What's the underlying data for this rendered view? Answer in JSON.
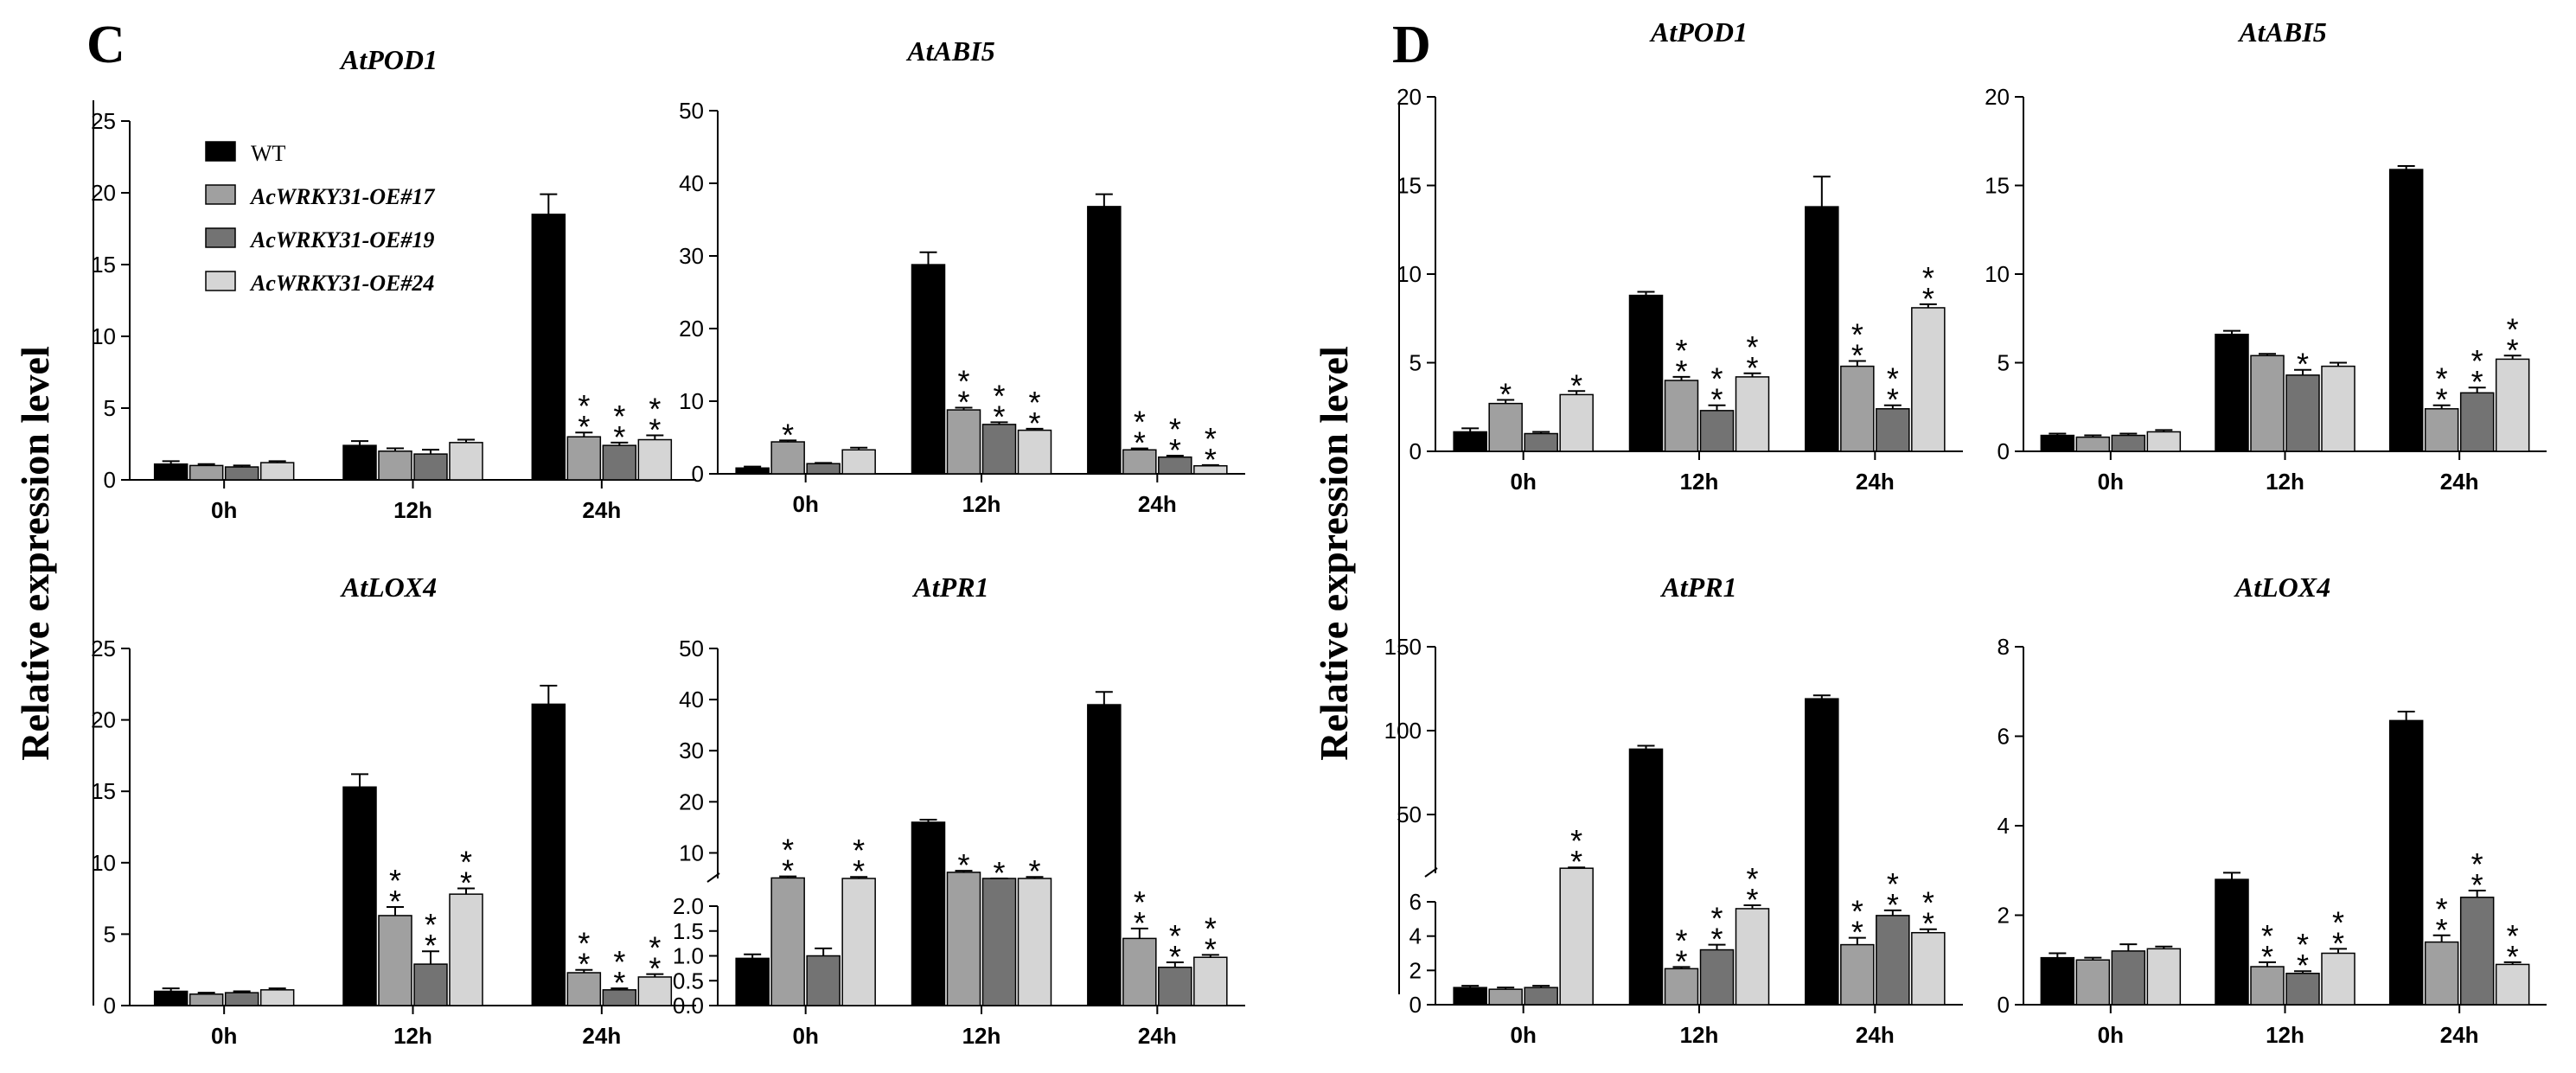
{
  "panels": [
    {
      "letter": "C",
      "ylabel": "Relative expression level"
    },
    {
      "letter": "D",
      "ylabel": "Relative expression level"
    }
  ],
  "legend": {
    "entries": [
      "WT",
      "AcWRKY31-OE#17",
      "AcWRKY31-OE#19",
      "AcWRKY31-OE#24"
    ],
    "colors": [
      "#000000",
      "#a0a0a0",
      "#737373",
      "#d5d5d5"
    ]
  },
  "chart_data": [
    {
      "type": "bar",
      "panel": "C",
      "title": "AtPOD1",
      "categories": [
        "0h",
        "12h",
        "24h"
      ],
      "ylim": [
        0,
        25
      ],
      "yticks": [
        0,
        5,
        10,
        15,
        20,
        25
      ],
      "series": [
        {
          "name": "WT",
          "values": [
            1.1,
            2.4,
            18.5
          ],
          "errors": [
            0.2,
            0.3,
            1.4
          ]
        },
        {
          "name": "AcWRKY31-OE#17",
          "values": [
            1.0,
            2.0,
            3.0
          ],
          "errors": [
            0.1,
            0.2,
            0.3
          ]
        },
        {
          "name": "AcWRKY31-OE#19",
          "values": [
            0.9,
            1.8,
            2.4
          ],
          "errors": [
            0.1,
            0.3,
            0.2
          ]
        },
        {
          "name": "AcWRKY31-OE#24",
          "values": [
            1.2,
            2.6,
            2.8
          ],
          "errors": [
            0.1,
            0.2,
            0.3
          ]
        }
      ],
      "significance": [
        [
          "",
          "",
          ""
        ],
        [
          "",
          "",
          "**"
        ],
        [
          "",
          "",
          "**"
        ],
        [
          "",
          "",
          "**"
        ]
      ]
    },
    {
      "type": "bar",
      "panel": "C",
      "title": "AtABI5",
      "categories": [
        "0h",
        "12h",
        "24h"
      ],
      "ylim": [
        0,
        50
      ],
      "yticks": [
        0,
        10,
        20,
        30,
        40,
        50
      ],
      "series": [
        {
          "name": "WT",
          "values": [
            0.8,
            28.8,
            36.8
          ],
          "errors": [
            0.2,
            1.7,
            1.7
          ]
        },
        {
          "name": "AcWRKY31-OE#17",
          "values": [
            4.4,
            8.8,
            3.3
          ],
          "errors": [
            0.2,
            0.3,
            0.2
          ]
        },
        {
          "name": "AcWRKY31-OE#19",
          "values": [
            1.4,
            6.8,
            2.3
          ],
          "errors": [
            0.1,
            0.3,
            0.2
          ]
        },
        {
          "name": "AcWRKY31-OE#24",
          "values": [
            3.3,
            6.0,
            1.1
          ],
          "errors": [
            0.3,
            0.2,
            0.1
          ]
        }
      ],
      "significance": [
        [
          "",
          "",
          ""
        ],
        [
          "*",
          "**",
          "**"
        ],
        [
          "",
          "**",
          "**"
        ],
        [
          "",
          "**",
          "**"
        ]
      ]
    },
    {
      "type": "bar",
      "panel": "C",
      "title": "AtLOX4",
      "categories": [
        "0h",
        "12h",
        "24h"
      ],
      "ylim": [
        0,
        25
      ],
      "yticks": [
        0,
        5,
        10,
        15,
        20,
        25
      ],
      "series": [
        {
          "name": "WT",
          "values": [
            1.0,
            15.3,
            21.1
          ],
          "errors": [
            0.2,
            0.9,
            1.3
          ]
        },
        {
          "name": "AcWRKY31-OE#17",
          "values": [
            0.8,
            6.3,
            2.3
          ],
          "errors": [
            0.1,
            0.6,
            0.2
          ]
        },
        {
          "name": "AcWRKY31-OE#19",
          "values": [
            0.9,
            2.9,
            1.1
          ],
          "errors": [
            0.1,
            0.9,
            0.1
          ]
        },
        {
          "name": "AcWRKY31-OE#24",
          "values": [
            1.1,
            7.8,
            2.0
          ],
          "errors": [
            0.1,
            0.4,
            0.2
          ]
        }
      ],
      "significance": [
        [
          "",
          "",
          ""
        ],
        [
          "",
          "**",
          "**"
        ],
        [
          "",
          "**",
          "**"
        ],
        [
          "",
          "**",
          "**"
        ]
      ]
    },
    {
      "type": "bar",
      "panel": "C",
      "title": "AtPR1",
      "categories": [
        "0h",
        "12h",
        "24h"
      ],
      "broken_axis": true,
      "lower_ylim": [
        0,
        2
      ],
      "lower_yticks": [
        0,
        0.5,
        1.0,
        1.5,
        2.0
      ],
      "upper_ylim": [
        5,
        50
      ],
      "upper_yticks": [
        10,
        20,
        30,
        40,
        50
      ],
      "series": [
        {
          "name": "WT",
          "values": [
            0.95,
            16.0,
            39.0
          ],
          "errors": [
            0.08,
            0.5,
            2.5
          ]
        },
        {
          "name": "AcWRKY31-OE#17",
          "values": [
            5.1,
            6.2,
            1.35
          ],
          "errors": [
            0.3,
            0.3,
            0.2
          ]
        },
        {
          "name": "AcWRKY31-OE#19",
          "values": [
            1.0,
            3.5,
            0.77
          ],
          "errors": [
            0.15,
            0.2,
            0.1
          ]
        },
        {
          "name": "AcWRKY31-OE#24",
          "values": [
            5.0,
            5.0,
            0.97
          ],
          "errors": [
            0.3,
            0.3,
            0.05
          ]
        }
      ],
      "significance": [
        [
          "",
          "",
          ""
        ],
        [
          "**",
          "*",
          "**"
        ],
        [
          "",
          "*",
          "**"
        ],
        [
          "**",
          "*",
          "**"
        ]
      ]
    },
    {
      "type": "bar",
      "panel": "D",
      "title": "AtPOD1",
      "categories": [
        "0h",
        "12h",
        "24h"
      ],
      "ylim": [
        0,
        20
      ],
      "yticks": [
        0,
        5,
        10,
        15,
        20
      ],
      "series": [
        {
          "name": "WT",
          "values": [
            1.1,
            8.8,
            13.8
          ],
          "errors": [
            0.2,
            0.2,
            1.7
          ]
        },
        {
          "name": "AcWRKY31-OE#17",
          "values": [
            2.7,
            4.0,
            4.8
          ],
          "errors": [
            0.2,
            0.2,
            0.3
          ]
        },
        {
          "name": "AcWRKY31-OE#19",
          "values": [
            1.0,
            2.3,
            2.4
          ],
          "errors": [
            0.1,
            0.3,
            0.2
          ]
        },
        {
          "name": "AcWRKY31-OE#24",
          "values": [
            3.2,
            4.2,
            8.1
          ],
          "errors": [
            0.2,
            0.2,
            0.2
          ]
        }
      ],
      "significance": [
        [
          "",
          "",
          ""
        ],
        [
          "*",
          "**",
          "**"
        ],
        [
          "",
          "**",
          "**"
        ],
        [
          "*",
          "**",
          "**"
        ]
      ]
    },
    {
      "type": "bar",
      "panel": "D",
      "title": "AtABI5",
      "categories": [
        "0h",
        "12h",
        "24h"
      ],
      "ylim": [
        0,
        20
      ],
      "yticks": [
        0,
        5,
        10,
        15,
        20
      ],
      "series": [
        {
          "name": "WT",
          "values": [
            0.9,
            6.6,
            15.9
          ],
          "errors": [
            0.1,
            0.2,
            0.2
          ]
        },
        {
          "name": "AcWRKY31-OE#17",
          "values": [
            0.8,
            5.4,
            2.4
          ],
          "errors": [
            0.1,
            0.1,
            0.2
          ]
        },
        {
          "name": "AcWRKY31-OE#19",
          "values": [
            0.9,
            4.3,
            3.3
          ],
          "errors": [
            0.1,
            0.3,
            0.3
          ]
        },
        {
          "name": "AcWRKY31-OE#24",
          "values": [
            1.1,
            4.8,
            5.2
          ],
          "errors": [
            0.1,
            0.2,
            0.2
          ]
        }
      ],
      "significance": [
        [
          "",
          "",
          ""
        ],
        [
          "",
          "",
          "**"
        ],
        [
          "",
          "*",
          "**"
        ],
        [
          "",
          "",
          "**"
        ]
      ]
    },
    {
      "type": "bar",
      "panel": "D",
      "title": "AtPR1",
      "categories": [
        "0h",
        "12h",
        "24h"
      ],
      "broken_axis": true,
      "lower_ylim": [
        0,
        6
      ],
      "lower_yticks": [
        0,
        2,
        4,
        6
      ],
      "upper_ylim": [
        15,
        150
      ],
      "upper_yticks": [
        50,
        100,
        150
      ],
      "series": [
        {
          "name": "WT",
          "values": [
            1.0,
            89,
            119
          ],
          "errors": [
            0.1,
            2,
            2
          ]
        },
        {
          "name": "AcWRKY31-OE#17",
          "values": [
            0.9,
            2.1,
            3.5
          ],
          "errors": [
            0.1,
            0.1,
            0.4
          ]
        },
        {
          "name": "AcWRKY31-OE#19",
          "values": [
            1.0,
            3.2,
            5.2
          ],
          "errors": [
            0.1,
            0.3,
            0.3
          ]
        },
        {
          "name": "AcWRKY31-OE#24",
          "values": [
            18,
            5.6,
            4.2
          ],
          "errors": [
            0.5,
            0.2,
            0.2
          ]
        }
      ],
      "significance": [
        [
          "",
          "",
          ""
        ],
        [
          "",
          "**",
          "**"
        ],
        [
          "",
          "**",
          "**"
        ],
        [
          "**",
          "**",
          "**"
        ]
      ]
    },
    {
      "type": "bar",
      "panel": "D",
      "title": "AtLOX4",
      "categories": [
        "0h",
        "12h",
        "24h"
      ],
      "ylim": [
        0,
        8
      ],
      "yticks": [
        0,
        2,
        4,
        6,
        8
      ],
      "series": [
        {
          "name": "WT",
          "values": [
            1.05,
            2.8,
            6.35
          ],
          "errors": [
            0.1,
            0.15,
            0.2
          ]
        },
        {
          "name": "AcWRKY31-OE#17",
          "values": [
            1.0,
            0.85,
            1.4
          ],
          "errors": [
            0.05,
            0.1,
            0.15
          ]
        },
        {
          "name": "AcWRKY31-OE#19",
          "values": [
            1.2,
            0.7,
            2.4
          ],
          "errors": [
            0.15,
            0.05,
            0.15
          ]
        },
        {
          "name": "AcWRKY31-OE#24",
          "values": [
            1.25,
            1.15,
            0.9
          ],
          "errors": [
            0.05,
            0.1,
            0.05
          ]
        }
      ],
      "significance": [
        [
          "",
          "",
          ""
        ],
        [
          "",
          "**",
          "**"
        ],
        [
          "",
          "**",
          "**"
        ],
        [
          "",
          "**",
          "**"
        ]
      ]
    }
  ]
}
